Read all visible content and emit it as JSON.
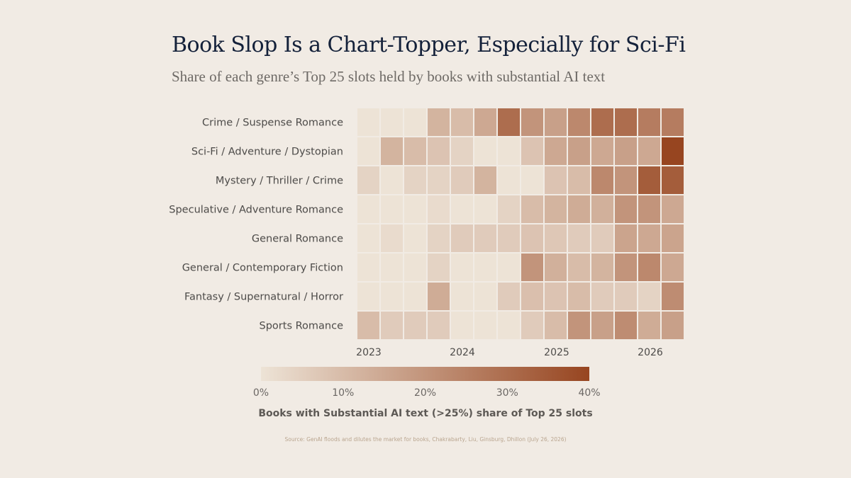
{
  "header": {
    "title": "Book Slop Is a Chart-Topper, Especially for Sci-Fi",
    "subtitle": "Share of each genre’s Top 25 slots held by books with substantial AI text"
  },
  "legend": {
    "title": "Books with Substantial AI text (>25%) share of Top 25 slots",
    "ticks": [
      "0%",
      "10%",
      "20%",
      "30%",
      "40%"
    ],
    "color_low": "#ede3d6",
    "color_high": "#974520"
  },
  "source": "Source: GenAI floods and dilutes the market for books, Chakrabarty, Liu, Ginsburg, Dhillon (July 26, 2026)",
  "chart_data": {
    "type": "heatmap",
    "title": "Book Slop Is a Chart-Topper, Especially for Sci-Fi",
    "subtitle": "Share of each genre’s Top 25 slots held by books with substantial AI text",
    "x_tick_labels": [
      "2023",
      "2024",
      "2025",
      "2026"
    ],
    "columns": 14,
    "rows": [
      "Crime / Suspense Romance",
      "Sci-Fi / Adventure / Dystopian",
      "Mystery / Thriller / Crime",
      "Speculative / Adventure Romance",
      "General Romance",
      "General / Contemporary Fiction",
      "Fantasy / Supernatural / Horror",
      "Sports Romance"
    ],
    "values": [
      [
        0,
        0,
        0,
        12,
        10,
        15,
        30,
        20,
        17,
        23,
        30,
        30,
        26,
        26
      ],
      [
        0,
        12,
        10,
        8,
        4,
        0,
        0,
        8,
        15,
        17,
        15,
        17,
        15,
        40
      ],
      [
        4,
        0,
        4,
        4,
        6,
        12,
        0,
        0,
        8,
        10,
        23,
        20,
        34,
        34
      ],
      [
        0,
        0,
        0,
        2,
        0,
        0,
        4,
        10,
        12,
        14,
        13,
        20,
        20,
        15
      ],
      [
        0,
        2,
        0,
        4,
        6,
        6,
        6,
        8,
        7,
        6,
        6,
        16,
        15,
        16
      ],
      [
        0,
        0,
        0,
        4,
        0,
        0,
        0,
        20,
        13,
        10,
        12,
        20,
        23,
        15
      ],
      [
        0,
        0,
        0,
        14,
        0,
        0,
        6,
        9,
        8,
        10,
        6,
        6,
        4,
        22
      ],
      [
        10,
        6,
        6,
        6,
        0,
        0,
        0,
        6,
        10,
        20,
        17,
        22,
        14,
        17
      ]
    ],
    "color_range": [
      0,
      40
    ],
    "legend_title": "Books with Substantial AI text (>25%) share of Top 25 slots",
    "legend_placement": "bottom"
  }
}
